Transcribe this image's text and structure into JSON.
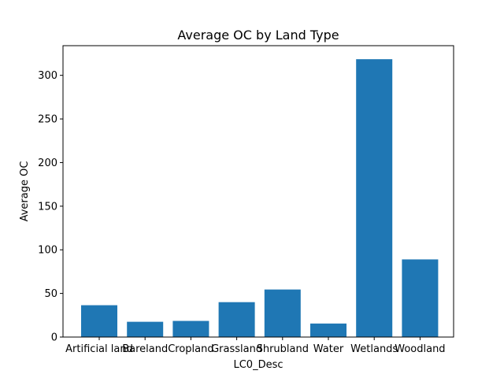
{
  "chart_data": {
    "type": "bar",
    "title": "Average OC by Land Type",
    "xlabel": "LC0_Desc",
    "ylabel": "Average OC",
    "categories": [
      "Artificial land",
      "Bareland",
      "Cropland",
      "Grassland",
      "Shrubland",
      "Water",
      "Wetlands",
      "Woodland"
    ],
    "values": [
      36.5,
      17.5,
      18.5,
      40,
      54.5,
      15.5,
      318.5,
      89
    ],
    "ylim": [
      0,
      334
    ],
    "yticks": [
      0,
      50,
      100,
      150,
      200,
      250,
      300
    ],
    "bar_color": "#1f77b4",
    "grid": false,
    "legend": "none"
  }
}
